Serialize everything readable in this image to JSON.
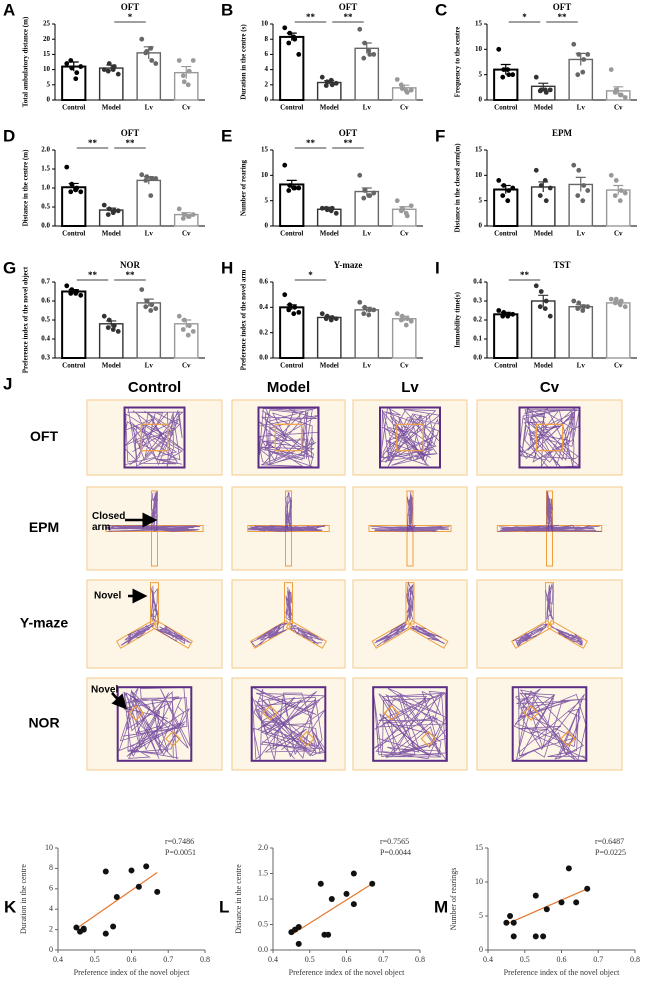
{
  "chart_data": [
    {
      "type": "bar",
      "panel": "A",
      "title": "OFT",
      "ylabel": "Total ambulatory distance (m)",
      "categories": [
        "Control",
        "Model",
        "Lv",
        "Cv"
      ],
      "values": [
        11,
        10.5,
        15.5,
        9
      ],
      "errors": [
        1.5,
        1,
        2,
        2
      ],
      "points": [
        [
          12,
          10.5,
          9,
          13,
          7,
          11
        ],
        [
          10,
          12,
          11,
          9.5,
          10,
          8.5
        ],
        [
          20,
          16,
          13,
          15.5,
          17,
          12
        ],
        [
          13,
          6,
          9.5,
          8,
          5,
          13
        ]
      ],
      "colors": [
        "#000000",
        "#333333",
        "#666666",
        "#999999"
      ],
      "ylim": [
        0,
        25
      ],
      "yticks": [
        0,
        5,
        10,
        15,
        20,
        25
      ],
      "significance": [
        {
          "pair": [
            1,
            2
          ],
          "label": "*"
        }
      ]
    },
    {
      "type": "bar",
      "panel": "B",
      "title": "OFT",
      "ylabel": "Duration in the centre (s)",
      "categories": [
        "Control",
        "Model",
        "Lv",
        "Cv"
      ],
      "values": [
        8.3,
        2.3,
        6.8,
        1.6
      ],
      "errors": [
        0.5,
        0.25,
        0.7,
        0.35
      ],
      "points": [
        [
          9.5,
          8.8,
          8,
          7.5,
          8.3,
          6
        ],
        [
          3,
          2.4,
          2,
          1.9,
          2.6,
          2.2
        ],
        [
          9.3,
          7.5,
          6,
          5.5,
          6.5,
          6
        ],
        [
          2.7,
          1.5,
          1,
          2,
          1.2,
          1.3
        ]
      ],
      "colors": [
        "#000000",
        "#333333",
        "#666666",
        "#999999"
      ],
      "ylim": [
        0,
        10
      ],
      "yticks": [
        0,
        2,
        4,
        6,
        8,
        10
      ],
      "significance": [
        {
          "pair": [
            0,
            1
          ],
          "label": "**"
        },
        {
          "pair": [
            1,
            2
          ],
          "label": "**"
        }
      ]
    },
    {
      "type": "bar",
      "panel": "C",
      "title": "OFT",
      "ylabel": "Frequency to the centre",
      "categories": [
        "Control",
        "Model",
        "Lv",
        "Cv"
      ],
      "values": [
        6,
        2.7,
        8,
        1.8
      ],
      "errors": [
        1,
        0.6,
        1.2,
        0.8
      ],
      "points": [
        [
          10,
          6,
          5,
          4.5,
          6,
          5
        ],
        [
          4.5,
          2,
          1.5,
          1.8,
          2,
          2
        ],
        [
          11,
          9,
          8,
          5,
          5.5,
          9
        ],
        [
          6,
          2,
          1,
          1.5,
          1,
          0.5
        ]
      ],
      "colors": [
        "#000000",
        "#333333",
        "#666666",
        "#999999"
      ],
      "ylim": [
        0,
        15
      ],
      "yticks": [
        0,
        5,
        10,
        15
      ],
      "significance": [
        {
          "pair": [
            0,
            1
          ],
          "label": "*"
        },
        {
          "pair": [
            1,
            2
          ],
          "label": "**"
        }
      ]
    },
    {
      "type": "bar",
      "panel": "D",
      "title": "OFT",
      "ylabel": "Distance in the centre (m)",
      "categories": [
        "Control",
        "Model",
        "Lv",
        "Cv"
      ],
      "values": [
        1.02,
        0.42,
        1.2,
        0.3
      ],
      "errors": [
        0.1,
        0.05,
        0.1,
        0.05
      ],
      "points": [
        [
          1.55,
          1.1,
          1.0,
          0.9,
          0.95,
          0.9
        ],
        [
          0.55,
          0.45,
          0.4,
          0.3,
          0.35,
          0.4
        ],
        [
          1.35,
          1.3,
          1.25,
          1.2,
          0.8,
          1.25
        ],
        [
          0.45,
          0.3,
          0.25,
          0.2,
          0.25,
          0.3
        ]
      ],
      "colors": [
        "#000000",
        "#333333",
        "#666666",
        "#999999"
      ],
      "ylim": [
        0,
        2
      ],
      "yticks": [
        {
          "value": 0,
          "label": "0.0"
        },
        0.5,
        {
          "value": 1,
          "label": "1.0"
        },
        1.5,
        {
          "value": 2,
          "label": "2.0"
        }
      ],
      "significance": [
        {
          "pair": [
            0,
            1
          ],
          "label": "**"
        },
        {
          "pair": [
            1,
            2
          ],
          "label": "**"
        }
      ]
    },
    {
      "type": "bar",
      "panel": "E",
      "title": "OFT",
      "ylabel": "Number of rearing",
      "categories": [
        "Control",
        "Model",
        "Lv",
        "Cv"
      ],
      "values": [
        8.2,
        3.3,
        6.8,
        3.3
      ],
      "errors": [
        0.8,
        0.4,
        0.7,
        0.5
      ],
      "points": [
        [
          12,
          8,
          7.5,
          7,
          7.5,
          7.5
        ],
        [
          3.5,
          3.2,
          3.5,
          3.5,
          3,
          2.5
        ],
        [
          10,
          7,
          6,
          5.5,
          6,
          6.5
        ],
        [
          5,
          3.5,
          2,
          3,
          2.5,
          4
        ]
      ],
      "colors": [
        "#000000",
        "#333333",
        "#666666",
        "#999999"
      ],
      "ylim": [
        0,
        15
      ],
      "yticks": [
        0,
        5,
        10,
        15
      ],
      "significance": [
        {
          "pair": [
            0,
            1
          ],
          "label": "**"
        },
        {
          "pair": [
            1,
            2
          ],
          "label": "**"
        }
      ]
    },
    {
      "type": "bar",
      "panel": "F",
      "title": "EPM",
      "ylabel": "Distance in the closed arm(m)",
      "categories": [
        "Control",
        "Model",
        "Lv",
        "Cv"
      ],
      "values": [
        7.2,
        7.7,
        8.2,
        7.1
      ],
      "errors": [
        0.8,
        1,
        1.4,
        0.9
      ],
      "points": [
        [
          9,
          8,
          7,
          6,
          5,
          7.5
        ],
        [
          11,
          8,
          5,
          6,
          9,
          7.5
        ],
        [
          12,
          11,
          8,
          6,
          5,
          7
        ],
        [
          10,
          9,
          7,
          6,
          5,
          6.5
        ]
      ],
      "colors": [
        "#000000",
        "#333333",
        "#666666",
        "#999999"
      ],
      "ylim": [
        0,
        15
      ],
      "yticks": [
        0,
        5,
        10,
        15
      ],
      "significance": []
    },
    {
      "type": "bar",
      "panel": "G",
      "title": "NOR",
      "ylabel": "Preference index of the novel object",
      "categories": [
        "Control",
        "Model",
        "Lv",
        "Cv"
      ],
      "values": [
        0.65,
        0.48,
        0.59,
        0.48
      ],
      "errors": [
        0.01,
        0.015,
        0.02,
        0.02
      ],
      "points": [
        [
          0.68,
          0.66,
          0.65,
          0.64,
          0.64,
          0.63
        ],
        [
          0.52,
          0.5,
          0.47,
          0.46,
          0.45,
          0.44
        ],
        [
          0.66,
          0.6,
          0.58,
          0.57,
          0.55,
          0.56
        ],
        [
          0.52,
          0.5,
          0.47,
          0.45,
          0.42,
          0.44
        ]
      ],
      "colors": [
        "#000000",
        "#333333",
        "#666666",
        "#999999"
      ],
      "ylim": [
        0.3,
        0.7
      ],
      "yticks": [
        0.3,
        0.4,
        0.5,
        0.6,
        0.7
      ],
      "significance": [
        {
          "pair": [
            0,
            1
          ],
          "label": "**"
        },
        {
          "pair": [
            1,
            2
          ],
          "label": "**"
        }
      ]
    },
    {
      "type": "bar",
      "panel": "H",
      "title": "Y-maze",
      "ylabel": "Preference index of the novel arm",
      "categories": [
        "Control",
        "Model",
        "Lv",
        "Cv"
      ],
      "values": [
        0.4,
        0.32,
        0.38,
        0.31
      ],
      "errors": [
        0.02,
        0.01,
        0.02,
        0.02
      ],
      "points": [
        [
          0.5,
          0.42,
          0.4,
          0.38,
          0.35,
          0.36
        ],
        [
          0.35,
          0.33,
          0.32,
          0.31,
          0.3,
          0.31
        ],
        [
          0.44,
          0.4,
          0.38,
          0.35,
          0.34,
          0.38
        ],
        [
          0.35,
          0.33,
          0.31,
          0.3,
          0.26,
          0.29
        ]
      ],
      "colors": [
        "#000000",
        "#333333",
        "#666666",
        "#999999"
      ],
      "ylim": [
        0,
        0.6
      ],
      "yticks": [
        {
          "value": 0,
          "label": "0.0"
        },
        0.2,
        0.4,
        0.6
      ],
      "significance": [
        {
          "pair": [
            0,
            1
          ],
          "label": "*"
        }
      ]
    },
    {
      "type": "bar",
      "panel": "I",
      "title": "TST",
      "ylabel": "Immobility time(s)",
      "categories": [
        "Control",
        "Model",
        "Lv",
        "Cv"
      ],
      "values": [
        0.23,
        0.3,
        0.27,
        0.29
      ],
      "errors": [
        0.01,
        0.03,
        0.01,
        0.01
      ],
      "points": [
        [
          0.25,
          0.24,
          0.23,
          0.22,
          0.22,
          0.23
        ],
        [
          0.38,
          0.35,
          0.3,
          0.27,
          0.26,
          0.22
        ],
        [
          0.3,
          0.29,
          0.27,
          0.26,
          0.25,
          0.27
        ],
        [
          0.31,
          0.31,
          0.3,
          0.29,
          0.28,
          0.27
        ]
      ],
      "colors": [
        "#000000",
        "#333333",
        "#666666",
        "#999999"
      ],
      "ylim": [
        0,
        0.4
      ],
      "yticks": [
        {
          "value": 0,
          "label": "0.0"
        },
        0.1,
        0.2,
        0.3,
        0.4
      ],
      "significance": [
        {
          "pair": [
            0,
            1
          ],
          "label": "**"
        }
      ]
    },
    {
      "type": "tracking",
      "panel": "J",
      "columns": [
        "Control",
        "Model",
        "Lv",
        "Cv"
      ],
      "rows": [
        "OFT",
        "EPM",
        "Y-maze",
        "NOR"
      ],
      "annotations": [
        "Closed arm",
        "Novel",
        "Novel"
      ]
    },
    {
      "type": "scatter",
      "panel": "K",
      "xlabel": "Preference index of the novel object",
      "ylabel": "Duration in the centre",
      "annotations": [
        "r=0.7486",
        "P=0.0051"
      ],
      "x": [
        0.45,
        0.46,
        0.47,
        0.47,
        0.53,
        0.53,
        0.55,
        0.56,
        0.6,
        0.62,
        0.64,
        0.67
      ],
      "values": [
        2.2,
        1.8,
        2.0,
        2.1,
        7.7,
        1.6,
        2.3,
        5.2,
        7.8,
        6.2,
        8.2,
        5.7
      ],
      "trendline": {
        "x": [
          0.45,
          0.67
        ],
        "y": [
          2.1,
          7.6
        ]
      },
      "color": "#111111",
      "line_color": "#e8762c",
      "xlim": [
        0.4,
        0.8
      ],
      "xticks": [
        0.4,
        0.5,
        0.6,
        0.7,
        0.8
      ],
      "ylim": [
        0,
        10
      ],
      "yticks": [
        0,
        2,
        4,
        6,
        8,
        10
      ]
    },
    {
      "type": "scatter",
      "panel": "L",
      "xlabel": "Preference index of the novel object",
      "ylabel": "Distance in the centre",
      "annotations": [
        "r=0.7565",
        "P=0.0044"
      ],
      "x": [
        0.45,
        0.46,
        0.47,
        0.47,
        0.53,
        0.54,
        0.55,
        0.56,
        0.6,
        0.62,
        0.62,
        0.67
      ],
      "values": [
        0.35,
        0.4,
        0.12,
        0.45,
        1.3,
        0.3,
        0.3,
        1.0,
        1.1,
        1.5,
        0.9,
        1.3
      ],
      "trendline": {
        "x": [
          0.45,
          0.67
        ],
        "y": [
          0.3,
          1.3
        ]
      },
      "color": "#111111",
      "line_color": "#e8762c",
      "xlim": [
        0.4,
        0.8
      ],
      "xticks": [
        0.4,
        0.5,
        0.6,
        0.7,
        0.8
      ],
      "ylim": [
        0,
        2
      ],
      "yticks": [
        {
          "value": 0,
          "label": "0.0"
        },
        0.5,
        {
          "value": 1,
          "label": "1.0"
        },
        1.5,
        {
          "value": 2,
          "label": "2.0"
        }
      ]
    },
    {
      "type": "scatter",
      "panel": "M",
      "xlabel": "Preference index of the novel object",
      "ylabel": "Number of rearings",
      "annotations": [
        "r=0.6487",
        "P=0.0225"
      ],
      "x": [
        0.45,
        0.46,
        0.47,
        0.47,
        0.53,
        0.53,
        0.55,
        0.56,
        0.6,
        0.62,
        0.64,
        0.67
      ],
      "values": [
        4,
        5,
        4,
        2,
        8,
        2,
        2,
        6,
        7,
        12,
        7,
        9
      ],
      "trendline": {
        "x": [
          0.45,
          0.67
        ],
        "y": [
          3.8,
          9
        ]
      },
      "color": "#111111",
      "line_color": "#e8762c",
      "xlim": [
        0.4,
        0.8
      ],
      "xticks": [
        0.4,
        0.5,
        0.6,
        0.7,
        0.8
      ],
      "ylim": [
        0,
        15
      ],
      "yticks": [
        0,
        5,
        10,
        15
      ]
    }
  ]
}
